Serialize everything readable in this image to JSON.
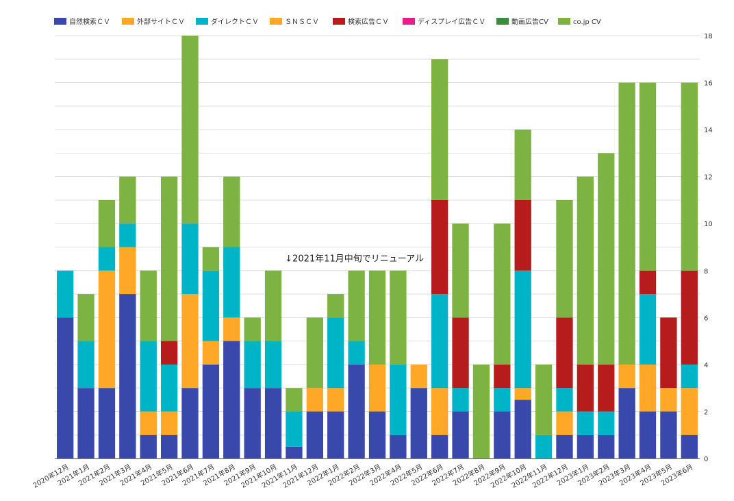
{
  "chart_data": {
    "type": "bar",
    "stacked": true,
    "categories": [
      "2020年12月",
      "2021年1月",
      "2021年2月",
      "2021年3月",
      "2021年4月",
      "2021年5月",
      "2021年6月",
      "2021年7月",
      "2021年8月",
      "2021年9月",
      "2021年10月",
      "2021年11月",
      "2021年12月",
      "2022年1月",
      "2022年2月",
      "2022年3月",
      "2022年4月",
      "2022年5月",
      "2022年6月",
      "2022年7月",
      "2022年8月",
      "2022年9月",
      "2022年10月",
      "2022年11月",
      "2022年12月",
      "2023年1月",
      "2023年2月",
      "2023年3月",
      "2023年4月",
      "2023年5月",
      "2023年6月"
    ],
    "series": [
      {
        "name": "自然検索ＣＶ",
        "color": "#3949ab",
        "values": [
          6,
          3,
          3,
          7,
          1,
          1,
          3,
          4,
          5,
          3,
          3,
          0.5,
          2,
          2,
          4,
          2,
          1,
          3,
          1,
          2,
          0,
          2,
          2.5,
          0,
          1,
          1,
          1,
          3,
          2,
          2,
          1
        ]
      },
      {
        "name": "外部サイトＣＶ",
        "color": "#ffa726",
        "values": [
          0,
          0,
          5,
          2,
          1,
          1,
          4,
          1,
          1,
          0,
          0,
          0,
          1,
          1,
          0,
          2,
          0,
          1,
          2,
          0,
          0,
          0,
          0.5,
          0,
          1,
          0,
          0,
          0,
          2,
          1,
          2
        ]
      },
      {
        "name": "ダイレクトＣＶ",
        "color": "#00b4c8",
        "values": [
          2,
          2,
          1,
          1,
          3,
          2,
          3,
          3,
          3,
          2,
          2,
          1.5,
          0,
          3,
          1,
          0,
          3,
          0,
          4,
          1,
          0,
          1,
          5,
          1,
          1,
          1,
          1,
          0,
          3,
          0,
          1
        ]
      },
      {
        "name": "ＳＮＳＣＶ",
        "color": "#ffa726",
        "values": [
          0,
          0,
          0,
          0,
          0,
          0,
          0,
          0,
          0,
          0,
          0,
          0,
          0,
          0,
          0,
          0,
          0,
          0,
          0,
          0,
          0,
          0,
          0,
          0,
          0,
          0,
          0,
          1,
          0,
          0,
          0
        ]
      },
      {
        "name": "検索広告ＣＶ",
        "color": "#b71c1c",
        "values": [
          0,
          0,
          0,
          0,
          0,
          1,
          0,
          0,
          0,
          0,
          0,
          0,
          0,
          0,
          0,
          0,
          0,
          0,
          4,
          3,
          0,
          1,
          3,
          0,
          3,
          2,
          2,
          0,
          1,
          3,
          4
        ]
      },
      {
        "name": "ディスプレイ広告ＣＶ",
        "color": "#e91e8c",
        "values": [
          0,
          0,
          0,
          0,
          0,
          0,
          0,
          0,
          0,
          0,
          0,
          0,
          0,
          0,
          0,
          0,
          0,
          0,
          0,
          0,
          0,
          0,
          0,
          0,
          0,
          0,
          0,
          0,
          0,
          0,
          0
        ]
      },
      {
        "name": "動画広告CV",
        "color": "#388e3c",
        "values": [
          0,
          0,
          0,
          0,
          0,
          0,
          0,
          0,
          0,
          0,
          0,
          0,
          0,
          0,
          0,
          0,
          0,
          0,
          0,
          0,
          0,
          0,
          0,
          0,
          0,
          0,
          0,
          0,
          0,
          0,
          0
        ]
      },
      {
        "name": "co.jp CV",
        "color": "#7cb342",
        "values": [
          0,
          2,
          2,
          2,
          3,
          7,
          8,
          1,
          3,
          1,
          3,
          1,
          3,
          1,
          3,
          4,
          4,
          0,
          6,
          4,
          4,
          6,
          3,
          3,
          5,
          8,
          9,
          12,
          8,
          0,
          8
        ]
      }
    ],
    "ylim": [
      0,
      18
    ],
    "yticks": [
      0,
      2,
      4,
      6,
      8,
      10,
      12,
      14,
      16,
      18
    ],
    "y_axis_position": "right",
    "grid": true,
    "legend_position": "top-left",
    "annotation": "↓2021年11月中旬でリニューアル",
    "annotation_anchor": {
      "category": "2021年11月",
      "y": 8.5
    }
  }
}
